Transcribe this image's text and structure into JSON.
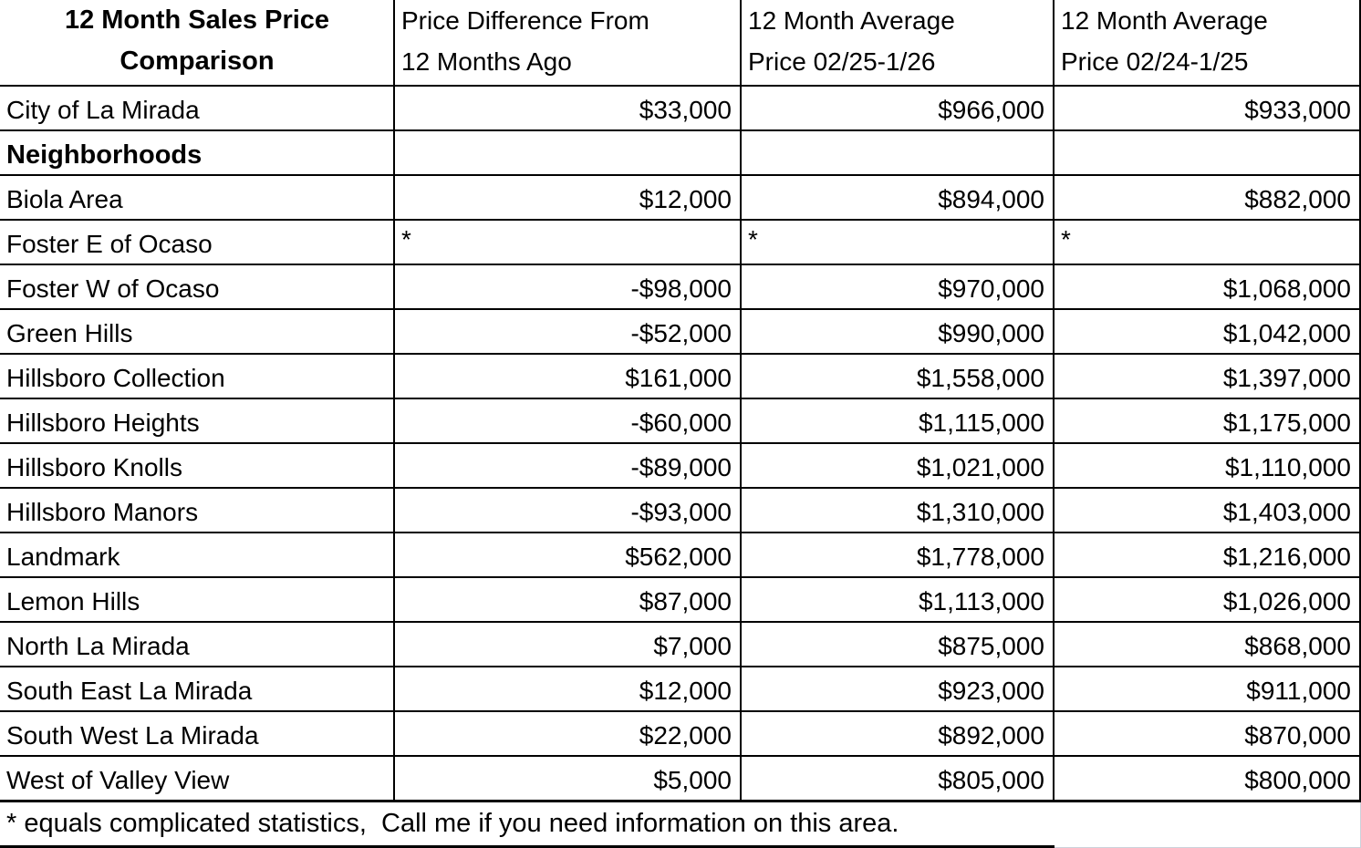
{
  "colors": {
    "background": "#ffffff",
    "text": "#000000",
    "grid_border": "#000000",
    "faint_gridline": "#ccd2da"
  },
  "table": {
    "header": {
      "col1": [
        "12 Month Sales Price",
        "Comparison"
      ],
      "col2": [
        "Price Difference From",
        "12 Months Ago"
      ],
      "col3": [
        "12 Month Average",
        "Price 02/25-1/26"
      ],
      "col4": [
        "12 Month Average",
        "Price 02/24-1/25"
      ]
    },
    "rows": [
      {
        "name": "City of La Mirada",
        "diff": "$33,000",
        "avg_2025": "$966,000",
        "avg_2024": "$933,000",
        "bold": false
      },
      {
        "name": "Neighborhoods",
        "diff": "",
        "avg_2025": "",
        "avg_2024": "",
        "bold": true
      },
      {
        "name": "Biola Area",
        "diff": "$12,000",
        "avg_2025": "$894,000",
        "avg_2024": "$882,000",
        "bold": false
      },
      {
        "name": "Foster E of Ocaso",
        "diff": "*",
        "avg_2025": "*",
        "avg_2024": "*",
        "bold": false
      },
      {
        "name": "Foster W of Ocaso",
        "diff": "-$98,000",
        "avg_2025": "$970,000",
        "avg_2024": "$1,068,000",
        "bold": false
      },
      {
        "name": "Green Hills",
        "diff": "-$52,000",
        "avg_2025": "$990,000",
        "avg_2024": "$1,042,000",
        "bold": false
      },
      {
        "name": "Hillsboro Collection",
        "diff": "$161,000",
        "avg_2025": "$1,558,000",
        "avg_2024": "$1,397,000",
        "bold": false
      },
      {
        "name": "Hillsboro Heights",
        "diff": "-$60,000",
        "avg_2025": "$1,115,000",
        "avg_2024": "$1,175,000",
        "bold": false
      },
      {
        "name": "Hillsboro Knolls",
        "diff": "-$89,000",
        "avg_2025": "$1,021,000",
        "avg_2024": "$1,110,000",
        "bold": false
      },
      {
        "name": "Hillsboro Manors",
        "diff": "-$93,000",
        "avg_2025": "$1,310,000",
        "avg_2024": "$1,403,000",
        "bold": false
      },
      {
        "name": "Landmark",
        "diff": "$562,000",
        "avg_2025": "$1,778,000",
        "avg_2024": "$1,216,000",
        "bold": false
      },
      {
        "name": "Lemon Hills",
        "diff": "$87,000",
        "avg_2025": "$1,113,000",
        "avg_2024": "$1,026,000",
        "bold": false
      },
      {
        "name": "North La Mirada",
        "diff": "$7,000",
        "avg_2025": "$875,000",
        "avg_2024": "$868,000",
        "bold": false
      },
      {
        "name": "South East La Mirada",
        "diff": "$12,000",
        "avg_2025": "$923,000",
        "avg_2024": "$911,000",
        "bold": false
      },
      {
        "name": "South West La Mirada",
        "diff": "$22,000",
        "avg_2025": "$892,000",
        "avg_2024": "$870,000",
        "bold": false
      },
      {
        "name": "West of Valley View",
        "diff": "$5,000",
        "avg_2025": "$805,000",
        "avg_2024": "$800,000",
        "bold": false
      }
    ],
    "footnote": "* equals complicated statistics,  Call me if you need information on this area."
  },
  "chart_data": {
    "type": "table",
    "title": "12 Month Sales Price Comparison",
    "columns": [
      "12 Month Sales Price Comparison",
      "Price Difference From 12 Months Ago",
      "12 Month Average Price 02/25-1/26",
      "12 Month Average Price 02/24-1/25"
    ],
    "rows": [
      [
        "City of La Mirada",
        33000,
        966000,
        933000
      ],
      [
        "Neighborhoods",
        null,
        null,
        null
      ],
      [
        "Biola Area",
        12000,
        894000,
        882000
      ],
      [
        "Foster E of Ocaso",
        "*",
        "*",
        "*"
      ],
      [
        "Foster W of Ocaso",
        -98000,
        970000,
        1068000
      ],
      [
        "Green Hills",
        -52000,
        990000,
        1042000
      ],
      [
        "Hillsboro Collection",
        161000,
        1558000,
        1397000
      ],
      [
        "Hillsboro Heights",
        -60000,
        1115000,
        1175000
      ],
      [
        "Hillsboro Knolls",
        -89000,
        1021000,
        1110000
      ],
      [
        "Hillsboro Manors",
        -93000,
        1310000,
        1403000
      ],
      [
        "Landmark",
        562000,
        1778000,
        1216000
      ],
      [
        "Lemon Hills",
        87000,
        1113000,
        1026000
      ],
      [
        "North La Mirada",
        7000,
        875000,
        868000
      ],
      [
        "South East La Mirada",
        12000,
        923000,
        911000
      ],
      [
        "South West La Mirada",
        22000,
        892000,
        870000
      ],
      [
        "West of Valley View",
        5000,
        805000,
        800000
      ]
    ],
    "footnote": "* equals complicated statistics,  Call me if you need information on this area."
  }
}
